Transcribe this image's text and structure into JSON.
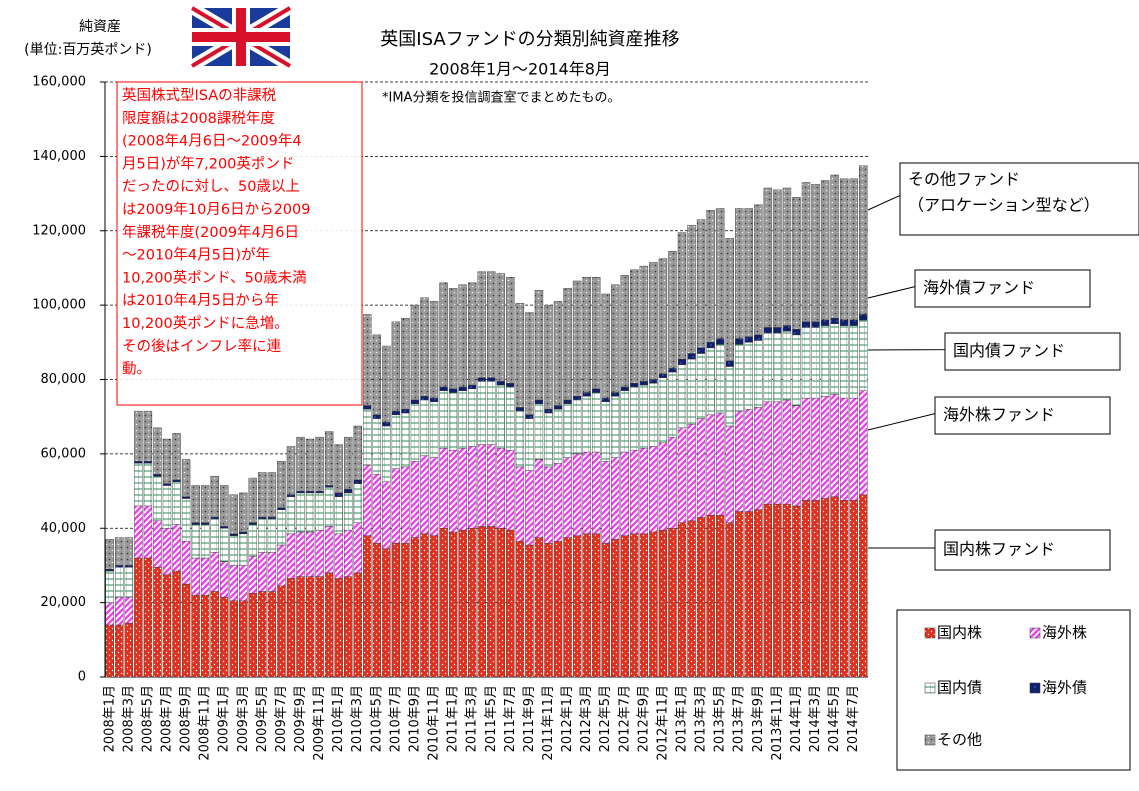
{
  "chart_data": {
    "type": "stacked_bar",
    "title": "英国ISAファンドの分類別純資産推移",
    "subtitle": "2008年1月～2014年8月",
    "note": "*IMA分類を投信調査室でまとめたもの。",
    "ylabel": [
      "純資産",
      "(単位:百万英ポンド)"
    ],
    "ylim": [
      0,
      160000
    ],
    "yticks": [
      0,
      {
        "value": 20000,
        "label": "20,000"
      },
      {
        "value": 40000,
        "label": "40,000"
      },
      {
        "value": 60000,
        "label": "60,000"
      },
      {
        "value": 80000,
        "label": "80,000"
      },
      {
        "value": 100000,
        "label": "100,000"
      },
      {
        "value": 120000,
        "label": "120,000"
      },
      {
        "value": 140000,
        "label": "140,000"
      },
      {
        "value": 160000,
        "label": "160,000"
      }
    ],
    "grid": true,
    "categories": [
      "2008年1月",
      null,
      "2008年3月",
      null,
      "2008年5月",
      null,
      "2008年7月",
      null,
      "2008年9月",
      null,
      "2008年11月",
      null,
      "2009年1月",
      null,
      "2009年3月",
      null,
      "2009年5月",
      null,
      "2009年7月",
      null,
      "2009年9月",
      null,
      "2009年11月",
      null,
      "2010年1月",
      null,
      "2010年3月",
      null,
      "2010年5月",
      null,
      "2010年7月",
      null,
      "2010年9月",
      null,
      "2010年11月",
      null,
      "2011年1月",
      null,
      "2011年3月",
      null,
      "2011年5月",
      null,
      "2011年7月",
      null,
      "2011年9月",
      null,
      "2011年11月",
      null,
      "2012年1月",
      null,
      "2012年3月",
      null,
      "2012年5月",
      null,
      "2012年7月",
      null,
      "2012年9月",
      null,
      "2012年11月",
      null,
      "2013年1月",
      null,
      "2013年3月",
      null,
      "2013年5月",
      null,
      "2013年7月",
      null,
      "2013年9月",
      null,
      "2013年11月",
      null,
      "2014年1月",
      null,
      "2014年3月",
      null,
      "2014年5月",
      null,
      "2014年7月",
      null
    ],
    "series": [
      {
        "name": "国内株",
        "color": "#e0301e",
        "values": [
          14000,
          14000,
          14500,
          32000,
          32000,
          29500,
          27500,
          28500,
          25000,
          22000,
          22000,
          23000,
          21500,
          20500,
          20500,
          22500,
          23000,
          23000,
          24500,
          26500,
          27000,
          27000,
          27000,
          28000,
          26500,
          27000,
          28000,
          38000,
          36000,
          34500,
          36000,
          36000,
          37500,
          38500,
          38000,
          40000,
          39000,
          39500,
          40000,
          40500,
          40500,
          40000,
          39500,
          36500,
          35500,
          37500,
          36000,
          36500,
          37500,
          38000,
          38500,
          38500,
          36000,
          37000,
          38000,
          38500,
          38500,
          39000,
          39500,
          40000,
          41500,
          42000,
          43000,
          43500,
          43500,
          41500,
          44500,
          44500,
          45000,
          46500,
          46500,
          46500,
          46000,
          47500,
          47500,
          48000,
          48500,
          47500,
          47500,
          49000
        ]
      },
      {
        "name": "海外株",
        "color": "#ee44ee",
        "values": [
          6000,
          7500,
          7000,
          14000,
          14000,
          12500,
          12500,
          12500,
          11500,
          10000,
          10000,
          10500,
          9500,
          9500,
          9500,
          10000,
          10500,
          10500,
          11000,
          12000,
          12000,
          12000,
          12500,
          12500,
          12000,
          12500,
          13500,
          19000,
          18500,
          18000,
          20000,
          20500,
          20500,
          21000,
          21000,
          21500,
          22000,
          22000,
          22000,
          22000,
          22000,
          21500,
          21500,
          20000,
          20000,
          21000,
          20500,
          21000,
          21500,
          22000,
          22000,
          22000,
          22000,
          22000,
          22500,
          22500,
          23000,
          23000,
          23500,
          24500,
          25500,
          26000,
          26500,
          27000,
          27500,
          26000,
          27000,
          27500,
          27500,
          27500,
          27500,
          28000,
          27000,
          27500,
          27500,
          27500,
          27500,
          27500,
          27500,
          28000
        ]
      },
      {
        "name": "国内債",
        "color": "#2e8b57",
        "values": [
          8500,
          8000,
          8000,
          11500,
          11500,
          12000,
          11500,
          11500,
          11500,
          9000,
          9000,
          9000,
          9000,
          8000,
          8500,
          8500,
          9000,
          9000,
          9500,
          10000,
          10500,
          10500,
          10000,
          10500,
          10000,
          10000,
          10500,
          15000,
          15000,
          15000,
          14500,
          14500,
          15500,
          15000,
          15000,
          15500,
          15500,
          15500,
          15500,
          17000,
          17000,
          17000,
          17000,
          15000,
          14000,
          15000,
          14500,
          14500,
          14500,
          14500,
          15000,
          16000,
          16000,
          16500,
          16500,
          17000,
          17000,
          17000,
          17500,
          17500,
          17000,
          17500,
          17500,
          18000,
          18500,
          16000,
          18000,
          18000,
          18000,
          18500,
          18500,
          18500,
          19000,
          19000,
          19000,
          19000,
          19000,
          19500,
          19500,
          19000
        ]
      },
      {
        "name": "海外債",
        "color": "#10206a",
        "values": [
          500,
          500,
          500,
          500,
          500,
          500,
          500,
          500,
          500,
          500,
          500,
          500,
          500,
          500,
          500,
          500,
          500,
          500,
          500,
          500,
          500,
          500,
          500,
          500,
          1000,
          1000,
          1000,
          1000,
          1000,
          1000,
          1000,
          1000,
          1000,
          1000,
          1000,
          1000,
          1000,
          1000,
          1000,
          1000,
          1000,
          1000,
          1000,
          1000,
          1000,
          1000,
          1000,
          1000,
          1000,
          1000,
          1000,
          1000,
          1000,
          1000,
          1000,
          1000,
          1000,
          1000,
          1000,
          1000,
          1500,
          1500,
          1500,
          1500,
          1500,
          1500,
          1500,
          1500,
          1500,
          1500,
          1500,
          1500,
          1500,
          1500,
          1500,
          1500,
          1500,
          1500,
          1500,
          1500
        ]
      },
      {
        "name": "その他",
        "color": "#999999",
        "values": [
          8000,
          7500,
          7500,
          13500,
          13500,
          12500,
          12000,
          12500,
          10000,
          10000,
          10000,
          11000,
          11000,
          10500,
          10500,
          12000,
          12000,
          12000,
          12500,
          13000,
          14500,
          14000,
          14500,
          14500,
          13000,
          14000,
          14500,
          24500,
          21500,
          20500,
          24000,
          24500,
          25500,
          26500,
          26000,
          28000,
          27000,
          27500,
          27500,
          28500,
          28500,
          29000,
          28500,
          28000,
          27500,
          29500,
          28000,
          28000,
          30000,
          31000,
          31000,
          30000,
          28000,
          29000,
          30000,
          30500,
          31000,
          31500,
          31000,
          31500,
          34000,
          34500,
          34500,
          35500,
          35000,
          33000,
          35000,
          34500,
          35000,
          37500,
          37000,
          37000,
          35500,
          37500,
          37000,
          37500,
          38500,
          38000,
          38000,
          40000
        ]
      }
    ],
    "annotation_box": [
      "英国株式型ISAの非課税",
      "限度額は2008課税年度",
      "(2008年4月6日～2009年4",
      "月5日)が年7,200英ポンド",
      "だったのに対し、50歳以上",
      "は2009年10月6日から2009",
      "年課税年度(2009年4月6日",
      "～2010年4月5日)が年",
      "10,200英ポンド、50歳未満",
      "は2010年4月5日から年",
      "10,200英ポンドに急増。",
      "その後はインフレ率に連",
      "動。"
    ],
    "callouts": [
      [
        "その他ファンド",
        "（アロケーション型など）"
      ],
      [
        "海外債ファンド"
      ],
      [
        "国内債ファンド"
      ],
      [
        "海外株ファンド"
      ],
      [
        "国内株ファンド"
      ]
    ]
  }
}
